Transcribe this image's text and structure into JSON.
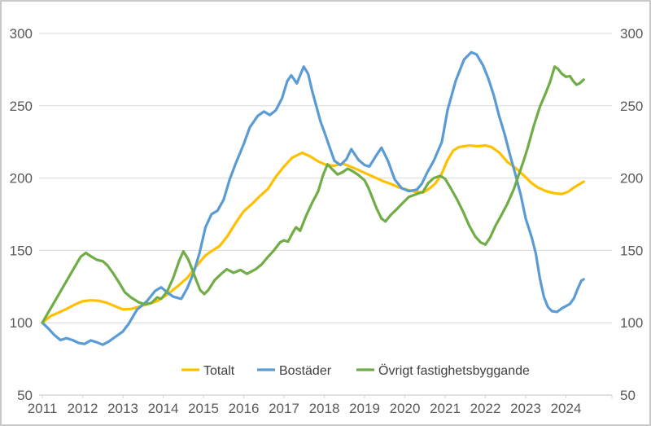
{
  "chart_data": {
    "type": "line",
    "title": "",
    "xlabel": "",
    "ylabel": "",
    "x_axis": {
      "ticks": [
        "2011",
        "2012",
        "2013",
        "2014",
        "2015",
        "2016",
        "2017",
        "2018",
        "2019",
        "2020",
        "2021",
        "2022",
        "2023",
        "2024"
      ],
      "min": 2011,
      "max": 2024.6
    },
    "y_axis": {
      "ticks": [
        300,
        250,
        200,
        150,
        100,
        50
      ],
      "min": 50,
      "max": 300,
      "dual_sided": true,
      "grid": true
    },
    "colors": {
      "grid": "#d9d9d9",
      "axis_text": "#595959",
      "legend_text": "#404040"
    },
    "legend_position": "bottom",
    "series": [
      {
        "name": "Totalt",
        "color": "#FFC000",
        "points": [
          [
            2011.0,
            100
          ],
          [
            2011.2,
            104.5
          ],
          [
            2011.4,
            107
          ],
          [
            2011.6,
            109.5
          ],
          [
            2011.8,
            112.5
          ],
          [
            2012.0,
            114.8
          ],
          [
            2012.2,
            115.5
          ],
          [
            2012.4,
            115.2
          ],
          [
            2012.6,
            113.8
          ],
          [
            2012.8,
            111.5
          ],
          [
            2013.0,
            109.2
          ],
          [
            2013.2,
            109.5
          ],
          [
            2013.4,
            111
          ],
          [
            2013.6,
            112.8
          ],
          [
            2013.85,
            115
          ],
          [
            2014.1,
            119.5
          ],
          [
            2014.35,
            125
          ],
          [
            2014.6,
            131
          ],
          [
            2014.85,
            140
          ],
          [
            2015.05,
            146.5
          ],
          [
            2015.2,
            149.5
          ],
          [
            2015.4,
            153
          ],
          [
            2015.6,
            160
          ],
          [
            2015.8,
            169
          ],
          [
            2016.0,
            177
          ],
          [
            2016.2,
            182
          ],
          [
            2016.4,
            187.5
          ],
          [
            2016.6,
            192.5
          ],
          [
            2016.8,
            201
          ],
          [
            2017.0,
            208
          ],
          [
            2017.2,
            214
          ],
          [
            2017.45,
            217.5
          ],
          [
            2017.65,
            215
          ],
          [
            2017.85,
            211.5
          ],
          [
            2018.05,
            209
          ],
          [
            2018.25,
            208.5
          ],
          [
            2018.45,
            210
          ],
          [
            2018.65,
            208
          ],
          [
            2018.85,
            205.5
          ],
          [
            2019.05,
            203
          ],
          [
            2019.25,
            200.5
          ],
          [
            2019.45,
            198
          ],
          [
            2019.65,
            196
          ],
          [
            2019.85,
            193.5
          ],
          [
            2020.05,
            192
          ],
          [
            2020.25,
            190.5
          ],
          [
            2020.45,
            190
          ],
          [
            2020.6,
            192.5
          ],
          [
            2020.75,
            196
          ],
          [
            2020.9,
            202
          ],
          [
            2021.05,
            212
          ],
          [
            2021.2,
            219
          ],
          [
            2021.35,
            221.5
          ],
          [
            2021.6,
            222.5
          ],
          [
            2021.8,
            222
          ],
          [
            2022.0,
            222.5
          ],
          [
            2022.15,
            221.5
          ],
          [
            2022.35,
            217.5
          ],
          [
            2022.55,
            211
          ],
          [
            2022.7,
            208
          ],
          [
            2022.85,
            204.5
          ],
          [
            2023.0,
            200.5
          ],
          [
            2023.15,
            196.5
          ],
          [
            2023.3,
            193.5
          ],
          [
            2023.5,
            191
          ],
          [
            2023.7,
            189.5
          ],
          [
            2023.9,
            189
          ],
          [
            2024.05,
            190.5
          ],
          [
            2024.2,
            193.5
          ],
          [
            2024.32,
            195.5
          ],
          [
            2024.44,
            197.5
          ]
        ]
      },
      {
        "name": "Bostäder",
        "color": "#5B9BD5",
        "points": [
          [
            2011.0,
            100
          ],
          [
            2011.15,
            96
          ],
          [
            2011.3,
            91.5
          ],
          [
            2011.45,
            88
          ],
          [
            2011.6,
            89.3
          ],
          [
            2011.75,
            88
          ],
          [
            2011.9,
            86
          ],
          [
            2012.05,
            85.3
          ],
          [
            2012.2,
            87.8
          ],
          [
            2012.35,
            86.5
          ],
          [
            2012.5,
            84.8
          ],
          [
            2012.65,
            87
          ],
          [
            2012.8,
            90
          ],
          [
            2013.0,
            94
          ],
          [
            2013.15,
            99.5
          ],
          [
            2013.35,
            109
          ],
          [
            2013.6,
            115
          ],
          [
            2013.8,
            122
          ],
          [
            2013.95,
            124.5
          ],
          [
            2014.1,
            121
          ],
          [
            2014.25,
            118
          ],
          [
            2014.45,
            116.5
          ],
          [
            2014.6,
            124
          ],
          [
            2014.75,
            134
          ],
          [
            2014.9,
            148
          ],
          [
            2015.05,
            166
          ],
          [
            2015.2,
            175
          ],
          [
            2015.35,
            177.5
          ],
          [
            2015.5,
            185
          ],
          [
            2015.65,
            199
          ],
          [
            2015.8,
            210
          ],
          [
            2016.0,
            223.5
          ],
          [
            2016.15,
            235
          ],
          [
            2016.35,
            243
          ],
          [
            2016.5,
            246
          ],
          [
            2016.65,
            243.5
          ],
          [
            2016.8,
            247
          ],
          [
            2016.95,
            255
          ],
          [
            2017.08,
            267
          ],
          [
            2017.18,
            271
          ],
          [
            2017.32,
            265.5
          ],
          [
            2017.49,
            277
          ],
          [
            2017.6,
            272
          ],
          [
            2017.7,
            260
          ],
          [
            2017.8,
            250
          ],
          [
            2017.9,
            239.5
          ],
          [
            2018.0,
            232
          ],
          [
            2018.1,
            224
          ],
          [
            2018.25,
            212
          ],
          [
            2018.4,
            209
          ],
          [
            2018.55,
            213
          ],
          [
            2018.67,
            220
          ],
          [
            2018.85,
            212.5
          ],
          [
            2019.0,
            209
          ],
          [
            2019.12,
            208
          ],
          [
            2019.3,
            216
          ],
          [
            2019.42,
            221
          ],
          [
            2019.58,
            212
          ],
          [
            2019.75,
            199
          ],
          [
            2019.92,
            193
          ],
          [
            2020.1,
            191
          ],
          [
            2020.3,
            192
          ],
          [
            2020.42,
            196
          ],
          [
            2020.55,
            203.5
          ],
          [
            2020.72,
            212
          ],
          [
            2020.92,
            225
          ],
          [
            2021.06,
            247
          ],
          [
            2021.26,
            267
          ],
          [
            2021.47,
            282
          ],
          [
            2021.65,
            287
          ],
          [
            2021.78,
            285.5
          ],
          [
            2021.94,
            278
          ],
          [
            2022.07,
            269
          ],
          [
            2022.21,
            257
          ],
          [
            2022.34,
            243
          ],
          [
            2022.48,
            230
          ],
          [
            2022.61,
            216
          ],
          [
            2022.75,
            202
          ],
          [
            2022.88,
            188
          ],
          [
            2023.0,
            172
          ],
          [
            2023.15,
            159
          ],
          [
            2023.25,
            148
          ],
          [
            2023.35,
            131
          ],
          [
            2023.45,
            118
          ],
          [
            2023.55,
            111
          ],
          [
            2023.65,
            108
          ],
          [
            2023.78,
            107.5
          ],
          [
            2023.9,
            110
          ],
          [
            2024.0,
            111.5
          ],
          [
            2024.1,
            113
          ],
          [
            2024.2,
            117
          ],
          [
            2024.3,
            124
          ],
          [
            2024.38,
            129
          ],
          [
            2024.44,
            130
          ]
        ]
      },
      {
        "name": "Övrigt fastighetsbyggande",
        "color": "#70AD47",
        "points": [
          [
            2011.0,
            100
          ],
          [
            2011.25,
            112
          ],
          [
            2011.5,
            124
          ],
          [
            2011.75,
            136
          ],
          [
            2011.95,
            145.5
          ],
          [
            2012.08,
            148.3
          ],
          [
            2012.2,
            146
          ],
          [
            2012.35,
            143.5
          ],
          [
            2012.5,
            142.5
          ],
          [
            2012.62,
            139.5
          ],
          [
            2012.75,
            134.5
          ],
          [
            2012.9,
            128
          ],
          [
            2013.05,
            121
          ],
          [
            2013.2,
            117.5
          ],
          [
            2013.4,
            114
          ],
          [
            2013.55,
            112.8
          ],
          [
            2013.7,
            113.5
          ],
          [
            2013.85,
            117.5
          ],
          [
            2013.95,
            116.5
          ],
          [
            2014.1,
            121.5
          ],
          [
            2014.25,
            131
          ],
          [
            2014.4,
            143
          ],
          [
            2014.5,
            149.3
          ],
          [
            2014.62,
            144
          ],
          [
            2014.72,
            137
          ],
          [
            2014.82,
            129.5
          ],
          [
            2014.92,
            122.5
          ],
          [
            2015.02,
            119.8
          ],
          [
            2015.12,
            122.5
          ],
          [
            2015.28,
            129.5
          ],
          [
            2015.45,
            134
          ],
          [
            2015.58,
            137
          ],
          [
            2015.75,
            134.5
          ],
          [
            2015.92,
            136.5
          ],
          [
            2016.08,
            133.8
          ],
          [
            2016.3,
            137
          ],
          [
            2016.45,
            140.5
          ],
          [
            2016.6,
            145.5
          ],
          [
            2016.75,
            150
          ],
          [
            2016.9,
            155.5
          ],
          [
            2017.0,
            157
          ],
          [
            2017.1,
            156
          ],
          [
            2017.22,
            162.5
          ],
          [
            2017.3,
            166
          ],
          [
            2017.4,
            163.5
          ],
          [
            2017.55,
            174
          ],
          [
            2017.7,
            183
          ],
          [
            2017.85,
            191
          ],
          [
            2017.97,
            202
          ],
          [
            2018.08,
            209.5
          ],
          [
            2018.2,
            206
          ],
          [
            2018.33,
            202.5
          ],
          [
            2018.45,
            204
          ],
          [
            2018.58,
            206.5
          ],
          [
            2018.72,
            204.5
          ],
          [
            2018.85,
            202
          ],
          [
            2019.0,
            198.5
          ],
          [
            2019.1,
            193
          ],
          [
            2019.2,
            186
          ],
          [
            2019.3,
            179
          ],
          [
            2019.42,
            172
          ],
          [
            2019.52,
            170
          ],
          [
            2019.65,
            174.5
          ],
          [
            2019.8,
            178.5
          ],
          [
            2019.92,
            182
          ],
          [
            2020.1,
            187
          ],
          [
            2020.3,
            189
          ],
          [
            2020.45,
            190.5
          ],
          [
            2020.58,
            196.5
          ],
          [
            2020.72,
            200
          ],
          [
            2020.88,
            201.5
          ],
          [
            2021.0,
            199.5
          ],
          [
            2021.15,
            192.5
          ],
          [
            2021.3,
            185
          ],
          [
            2021.45,
            176.5
          ],
          [
            2021.6,
            167
          ],
          [
            2021.75,
            159.5
          ],
          [
            2021.88,
            155.5
          ],
          [
            2022.0,
            154
          ],
          [
            2022.12,
            159
          ],
          [
            2022.25,
            167
          ],
          [
            2022.4,
            174.5
          ],
          [
            2022.55,
            182.5
          ],
          [
            2022.7,
            192
          ],
          [
            2022.8,
            200
          ],
          [
            2022.95,
            212
          ],
          [
            2023.05,
            221
          ],
          [
            2023.2,
            236
          ],
          [
            2023.35,
            249
          ],
          [
            2023.5,
            259
          ],
          [
            2023.6,
            266
          ],
          [
            2023.72,
            277
          ],
          [
            2023.8,
            275.5
          ],
          [
            2023.9,
            272
          ],
          [
            2024.0,
            270
          ],
          [
            2024.1,
            270.5
          ],
          [
            2024.18,
            267
          ],
          [
            2024.26,
            264.5
          ],
          [
            2024.34,
            265.5
          ],
          [
            2024.44,
            268
          ]
        ]
      }
    ]
  }
}
